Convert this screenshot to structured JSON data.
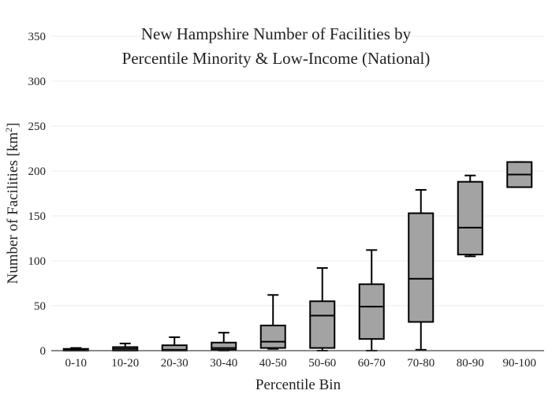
{
  "chart_data": {
    "type": "box",
    "title_lines": [
      "New Hampshire Number of Facilities by",
      "Percentile Minority & Low-Income (National)"
    ],
    "xlabel": "Percentile Bin",
    "ylabel_main": "Number of Facilities  [km",
    "ylabel_sup": "2",
    "ylabel_end": "]",
    "ylim": [
      0,
      350
    ],
    "yticks": [
      0,
      50,
      100,
      150,
      200,
      250,
      300,
      350
    ],
    "grid": true,
    "categories": [
      "0-10",
      "10-20",
      "20-30",
      "30-40",
      "40-50",
      "50-60",
      "60-70",
      "70-80",
      "80-90",
      "90-100"
    ],
    "boxes": [
      {
        "category": "0-10",
        "min": 0,
        "q1": 0,
        "median": 1,
        "q3": 2,
        "max": 3
      },
      {
        "category": "10-20",
        "min": 0,
        "q1": 0,
        "median": 2,
        "q3": 4,
        "max": 8
      },
      {
        "category": "20-30",
        "min": 0,
        "q1": 0,
        "median": 1,
        "q3": 6,
        "max": 15
      },
      {
        "category": "30-40",
        "min": 0,
        "q1": 1,
        "median": 3,
        "q3": 9,
        "max": 20
      },
      {
        "category": "40-50",
        "min": 2,
        "q1": 3,
        "median": 10,
        "q3": 28,
        "max": 62
      },
      {
        "category": "50-60",
        "min": 0,
        "q1": 3,
        "median": 39,
        "q3": 55,
        "max": 92
      },
      {
        "category": "60-70",
        "min": 0,
        "q1": 13,
        "median": 49,
        "q3": 74,
        "max": 112
      },
      {
        "category": "70-80",
        "min": 1,
        "q1": 32,
        "median": 80,
        "q3": 153,
        "max": 179
      },
      {
        "category": "80-90",
        "min": 105,
        "q1": 107,
        "median": 137,
        "q3": 188,
        "max": 195
      },
      {
        "category": "90-100",
        "min": 182,
        "q1": 182,
        "median": 196,
        "q3": 210,
        "max": 210
      }
    ],
    "box_fill": "#a3a3a3",
    "box_stroke": "#000000"
  }
}
